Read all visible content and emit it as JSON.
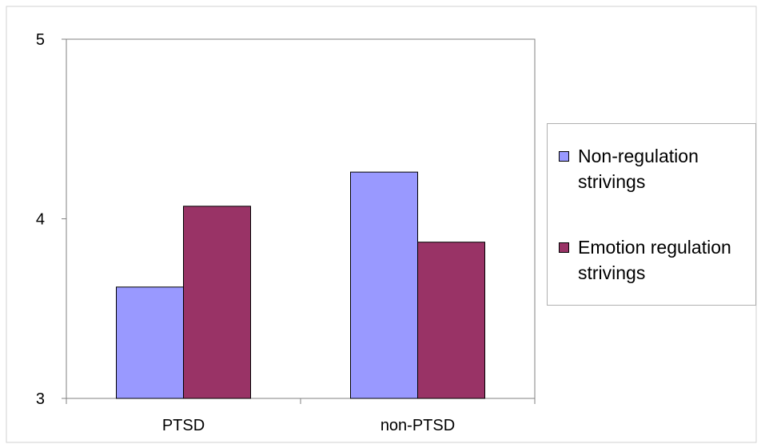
{
  "chart_data": {
    "type": "bar",
    "title": "",
    "xlabel": "",
    "ylabel": "",
    "categories": [
      "PTSD",
      "non-PTSD"
    ],
    "series": [
      {
        "name": "Non-regulation strivings",
        "values": [
          3.62,
          4.26
        ],
        "color": "#9999ff"
      },
      {
        "name": "Emotion regulation strivings",
        "values": [
          4.07,
          3.87
        ],
        "color": "#993366"
      }
    ],
    "ylim": [
      3,
      5
    ],
    "yticks": [
      "3",
      "4",
      "5"
    ],
    "grid": false,
    "legend_position": "right"
  }
}
